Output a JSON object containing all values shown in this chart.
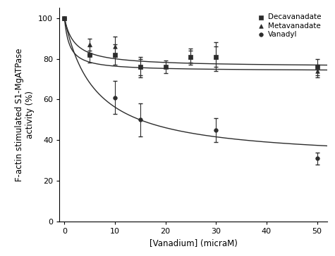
{
  "title": "",
  "xlabel": "[Vanadium] (micraM)",
  "ylabel": "F-actin stimulated S1-MgATPase\nactivity (%)",
  "xlim": [
    -1,
    52
  ],
  "ylim": [
    0,
    105
  ],
  "xticks": [
    0,
    10,
    20,
    30,
    40,
    50
  ],
  "yticks": [
    0,
    20,
    40,
    60,
    80,
    100
  ],
  "decavanadate": {
    "x": [
      0,
      5,
      10,
      15,
      20,
      25,
      30,
      50
    ],
    "y": [
      100,
      82,
      82,
      76,
      76,
      81,
      81,
      76
    ],
    "yerr": [
      0,
      4,
      5,
      4,
      3,
      3,
      5,
      4
    ],
    "marker": "s",
    "label": "Decavanadate",
    "Vmin": 76,
    "Ki": 2
  },
  "metavanadate": {
    "x": [
      0,
      5,
      10,
      15,
      25,
      30,
      50
    ],
    "y": [
      100,
      87,
      86,
      76,
      81,
      81,
      74
    ],
    "yerr": [
      0,
      3,
      5,
      5,
      4,
      7,
      3
    ],
    "marker": "^",
    "label": "Metavanadate",
    "Vmin": 74,
    "Ki": 1
  },
  "vanadyl": {
    "x": [
      0,
      5,
      10,
      15,
      30,
      50
    ],
    "y": [
      100,
      82,
      61,
      50,
      45,
      31
    ],
    "yerr": [
      0,
      0,
      8,
      8,
      6,
      3
    ],
    "marker": "s",
    "label": "Vanadyl",
    "Vmin": 30,
    "Ki": 6
  },
  "color": "#2c2c2c",
  "background_color": "#ffffff",
  "legend_fontsize": 7.5,
  "axis_fontsize": 8.5,
  "tick_fontsize": 8
}
